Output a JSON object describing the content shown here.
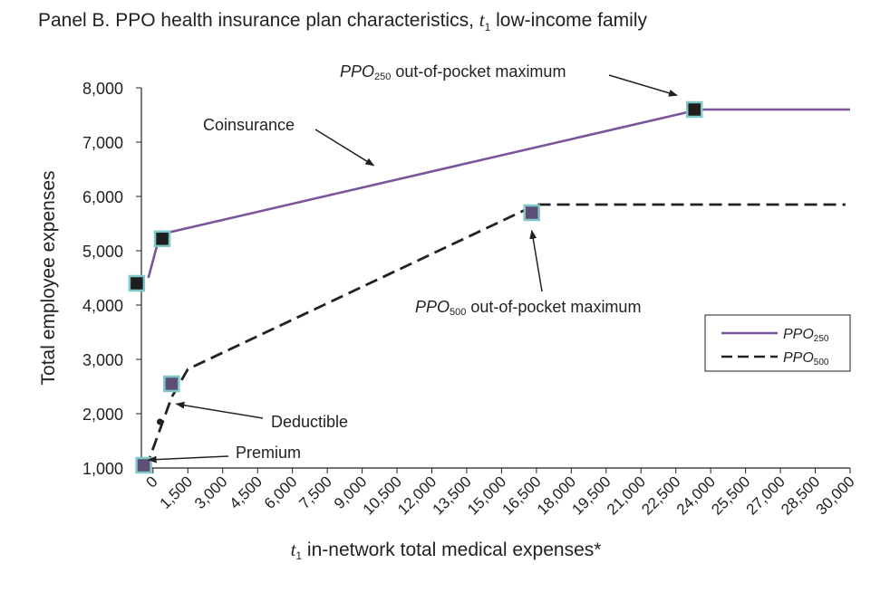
{
  "title": {
    "prefix": "Panel B. PPO health insurance plan characteristics, ",
    "var": "t",
    "sub": "1",
    "suffix": " low-income family"
  },
  "chart_data": {
    "type": "line",
    "xlabel": {
      "var": "t",
      "sub": "1",
      "text": " in-network total medical expenses*"
    },
    "ylabel": "Total employee expenses",
    "xlim": [
      -500,
      30000
    ],
    "ylim": [
      1000,
      8000
    ],
    "x_ticks": [
      0,
      1500,
      3000,
      4500,
      6000,
      7500,
      9000,
      10500,
      12000,
      13500,
      15000,
      16500,
      18000,
      19500,
      21000,
      22500,
      24000,
      25500,
      27000,
      28500,
      30000
    ],
    "x_tick_labels": [
      "0",
      "1,500",
      "3,000",
      "4,500",
      "6,000",
      "7,500",
      "9,000",
      "10,500",
      "12,000",
      "13,500",
      "15,000",
      "16,500",
      "18,000",
      "19,500",
      "21,000",
      "22,500",
      "24,000",
      "25,500",
      "27,000",
      "28,500",
      "30,000"
    ],
    "y_ticks": [
      1000,
      2000,
      3000,
      4000,
      5000,
      6000,
      7000,
      8000
    ],
    "y_tick_labels": [
      "1,000",
      "2,000",
      "3,000",
      "4,000",
      "5,000",
      "6,000",
      "7,000",
      "8,000"
    ],
    "grid": false,
    "legend_position": "right",
    "series": [
      {
        "name": "PPO",
        "name_sub": "250",
        "color": "#7b559c",
        "style": "solid",
        "x": [
          -200,
          300,
          23500,
          30000
        ],
        "y": [
          4500,
          5300,
          7600,
          7600
        ],
        "markers": [
          {
            "x": -700,
            "y": 4400
          },
          {
            "x": 400,
            "y": 5220
          },
          {
            "x": 23300,
            "y": 7600
          }
        ]
      },
      {
        "name": "PPO",
        "name_sub": "500",
        "color": "#222222",
        "style": "dashdot",
        "x": [
          -300,
          800,
          1500,
          16500,
          29800
        ],
        "y": [
          1000,
          2300,
          2820,
          5850,
          5850
        ],
        "markers": [
          {
            "x": -400,
            "y": 1050
          },
          {
            "x": 800,
            "y": 2550
          },
          {
            "x": 16300,
            "y": 5700
          }
        ]
      }
    ],
    "annotations": [
      {
        "key": "ppo250_oop",
        "prefix": "PPO",
        "sub": "250",
        "text": " out-of-pocket maximum",
        "point_x": 23300,
        "point_y": 7600
      },
      {
        "key": "coinsurance",
        "text": "Coinsurance",
        "point_x": 9500,
        "point_y": 6570
      },
      {
        "key": "ppo500_oop",
        "prefix": "PPO",
        "sub": "500",
        "text": " out-of-pocket maximum",
        "point_x": 16300,
        "point_y": 5700
      },
      {
        "key": "deductible",
        "text": "Deductible",
        "point_x": 1000,
        "point_y": 2180
      },
      {
        "key": "premium",
        "text": "Premium",
        "point_x": -200,
        "point_y": 1150
      }
    ],
    "isolated_point": {
      "x": 300,
      "y": 1850
    }
  },
  "colors": {
    "marker_fill_dark": "#1e1e1e",
    "marker_fill_purple": "#5d4e78",
    "marker_border": "#7fc8c8",
    "ppo250_line": "#7b559c",
    "ppo500_line": "#222222"
  }
}
